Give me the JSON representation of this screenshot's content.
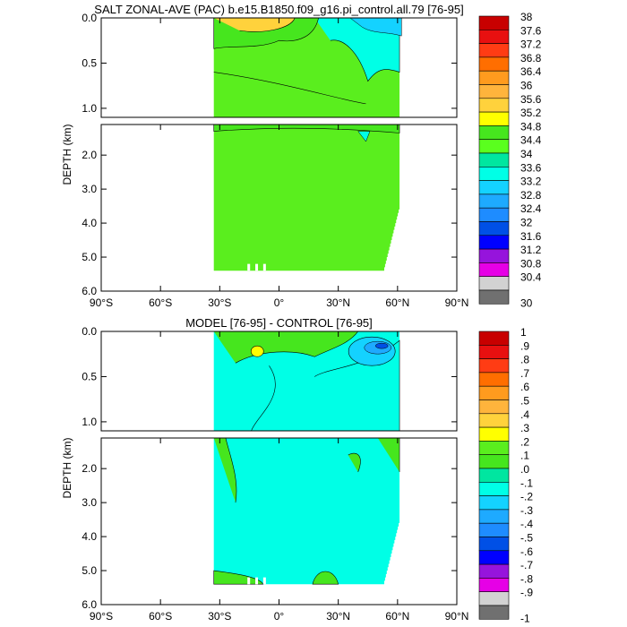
{
  "chart_data": [
    {
      "type": "heatmap",
      "title": "SALT ZONAL-AVE (PAC) b.e15.B1850.f09_g16.pi_control.all.79 [76-95]",
      "xlabel": "",
      "ylabel": "DEPTH (km)",
      "x_ticks": [
        "90°S",
        "60°S",
        "30°S",
        "0°",
        "30°N",
        "60°N",
        "90°N"
      ],
      "y_ticks_upper": [
        "0.0",
        "0.5",
        "1.0"
      ],
      "y_ticks_lower": [
        "2.0",
        "3.0",
        "4.0",
        "5.0",
        "6.0"
      ],
      "xlim_deg": [
        -90,
        90
      ],
      "ylim_km": [
        0,
        6
      ],
      "colorbar_labels": [
        "38",
        "37.6",
        "37.2",
        "36.8",
        "36.4",
        "36",
        "35.6",
        "35.2",
        "34.8",
        "34.4",
        "34",
        "33.6",
        "33.2",
        "32.8",
        "32.4",
        "32",
        "31.6",
        "31.2",
        "30.8",
        "30.4",
        "30"
      ],
      "colorbar_colors": [
        "#c80000",
        "#e81010",
        "#ff3c14",
        "#ff6e00",
        "#ff9b1e",
        "#ffb43c",
        "#ffd23c",
        "#ffff00",
        "#46e61e",
        "#5aff1e",
        "#00e6a0",
        "#00ffe6",
        "#14d2ff",
        "#1eaaff",
        "#1e8cff",
        "#0050e6",
        "#0000ff",
        "#9614dc",
        "#e600e6",
        "#d2d2d2",
        "#707070"
      ],
      "background_color": "#5aee1e"
    },
    {
      "type": "heatmap",
      "title": "MODEL [76-95] - CONTROL [76-95]",
      "xlabel": "",
      "ylabel": "DEPTH (km)",
      "x_ticks": [
        "90°S",
        "60°S",
        "30°S",
        "0°",
        "30°N",
        "60°N",
        "90°N"
      ],
      "y_ticks_upper": [
        "0.0",
        "0.5",
        "1.0"
      ],
      "y_ticks_lower": [
        "2.0",
        "3.0",
        "4.0",
        "5.0",
        "6.0"
      ],
      "xlim_deg": [
        -90,
        90
      ],
      "ylim_km": [
        0,
        6
      ],
      "colorbar_labels": [
        "1",
        ".9",
        ".8",
        ".7",
        ".6",
        ".5",
        ".4",
        ".3",
        ".2",
        ".1",
        ".0",
        "-.1",
        "-.2",
        "-.3",
        "-.4",
        "-.5",
        "-.6",
        "-.7",
        "-.8",
        "-.9",
        "-1"
      ],
      "colorbar_colors": [
        "#c80000",
        "#e81010",
        "#ff3c14",
        "#ff6e00",
        "#ff9b1e",
        "#ffb43c",
        "#ffd23c",
        "#ffff00",
        "#5aee1e",
        "#46e61e",
        "#00e6a0",
        "#00ffe6",
        "#14d2ff",
        "#1eaaff",
        "#1e8cff",
        "#0050e6",
        "#0000ff",
        "#9614dc",
        "#e600e6",
        "#d2d2d2",
        "#707070"
      ],
      "background_color": "#00ffe6"
    }
  ]
}
